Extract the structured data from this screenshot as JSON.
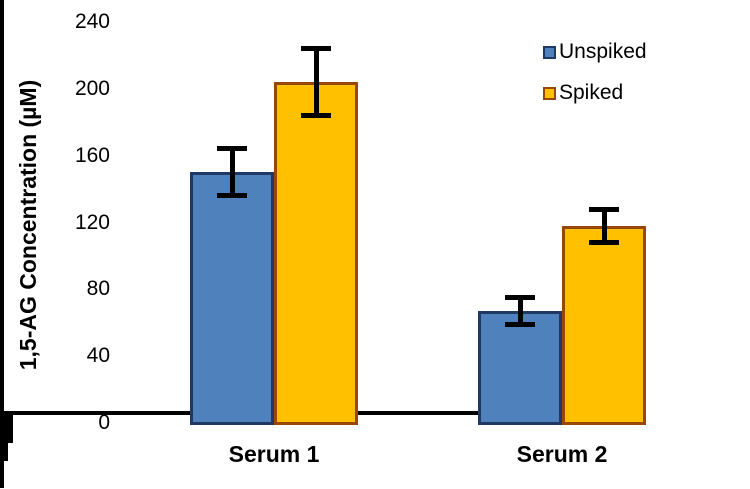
{
  "chart_data": {
    "type": "bar",
    "title": "",
    "categories": [
      "Serum 1",
      "Serum 2"
    ],
    "series": [
      {
        "name": "Unspiked",
        "values": [
          150,
          67
        ],
        "errors": [
          14,
          8
        ],
        "fill": "#4F81BD",
        "border": "#1F3864"
      },
      {
        "name": "Spiked",
        "values": [
          204,
          118
        ],
        "errors": [
          20,
          10
        ],
        "fill": "#FFC000",
        "border": "#974706"
      }
    ],
    "xlabel": "",
    "ylabel": "1,5-AG Concentration (µM)",
    "ylim": [
      0,
      240
    ],
    "ytick_step": 40,
    "yminor_step": 20,
    "yticks": [
      "0",
      "40",
      "80",
      "120",
      "160",
      "200",
      "240"
    ],
    "grid": false,
    "legend_position": "top-right",
    "axis_color": "#000000",
    "error_bar_color": "#000000",
    "background": "#ffffff"
  }
}
